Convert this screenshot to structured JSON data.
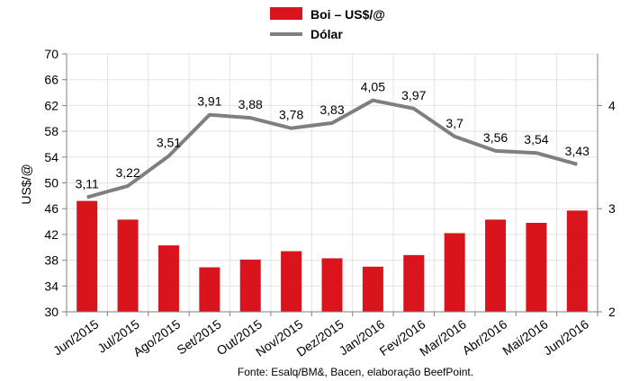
{
  "chart_data": {
    "type": "bar",
    "categories": [
      "Jun/2015",
      "Jul/2015",
      "Ago/2015",
      "Set/2015",
      "Out/2015",
      "Nov/2015",
      "Dez/2015",
      "Jan/2016",
      "Fev/2016",
      "Mar/2016",
      "Abr/2016",
      "Mai/2016",
      "Jun/2016"
    ],
    "series": [
      {
        "name": "Boi – US$/@",
        "type": "bar",
        "axis": "left",
        "color": "#d9141c",
        "values": [
          47.2,
          44.3,
          40.3,
          36.9,
          38.1,
          39.4,
          38.3,
          37.0,
          38.8,
          42.2,
          44.3,
          43.8,
          45.7
        ]
      },
      {
        "name": "Dólar",
        "type": "line",
        "axis": "right",
        "color": "#7f7f7f",
        "values": [
          3.11,
          3.22,
          3.51,
          3.91,
          3.88,
          3.78,
          3.83,
          4.05,
          3.97,
          3.7,
          3.56,
          3.54,
          3.43
        ],
        "labels": [
          "3,11",
          "3,22",
          "3,51",
          "3,91",
          "3,88",
          "3,78",
          "3,83",
          "4,05",
          "3,97",
          "3,7",
          "3,56",
          "3,54",
          "3,43"
        ]
      }
    ],
    "ylabel": "US$/@",
    "ylim": [
      30,
      70
    ],
    "yticks": [
      "30",
      "34",
      "38",
      "42",
      "46",
      "50",
      "54",
      "58",
      "62",
      "66",
      "70"
    ],
    "y2lim": [
      2,
      4.5
    ],
    "y2ticks": [
      "2",
      "3",
      "4"
    ],
    "grid": true,
    "legend_position": "top-center",
    "source": "Fonte: Esalq/BM&, Bacen, elaboração BeefPoint."
  }
}
